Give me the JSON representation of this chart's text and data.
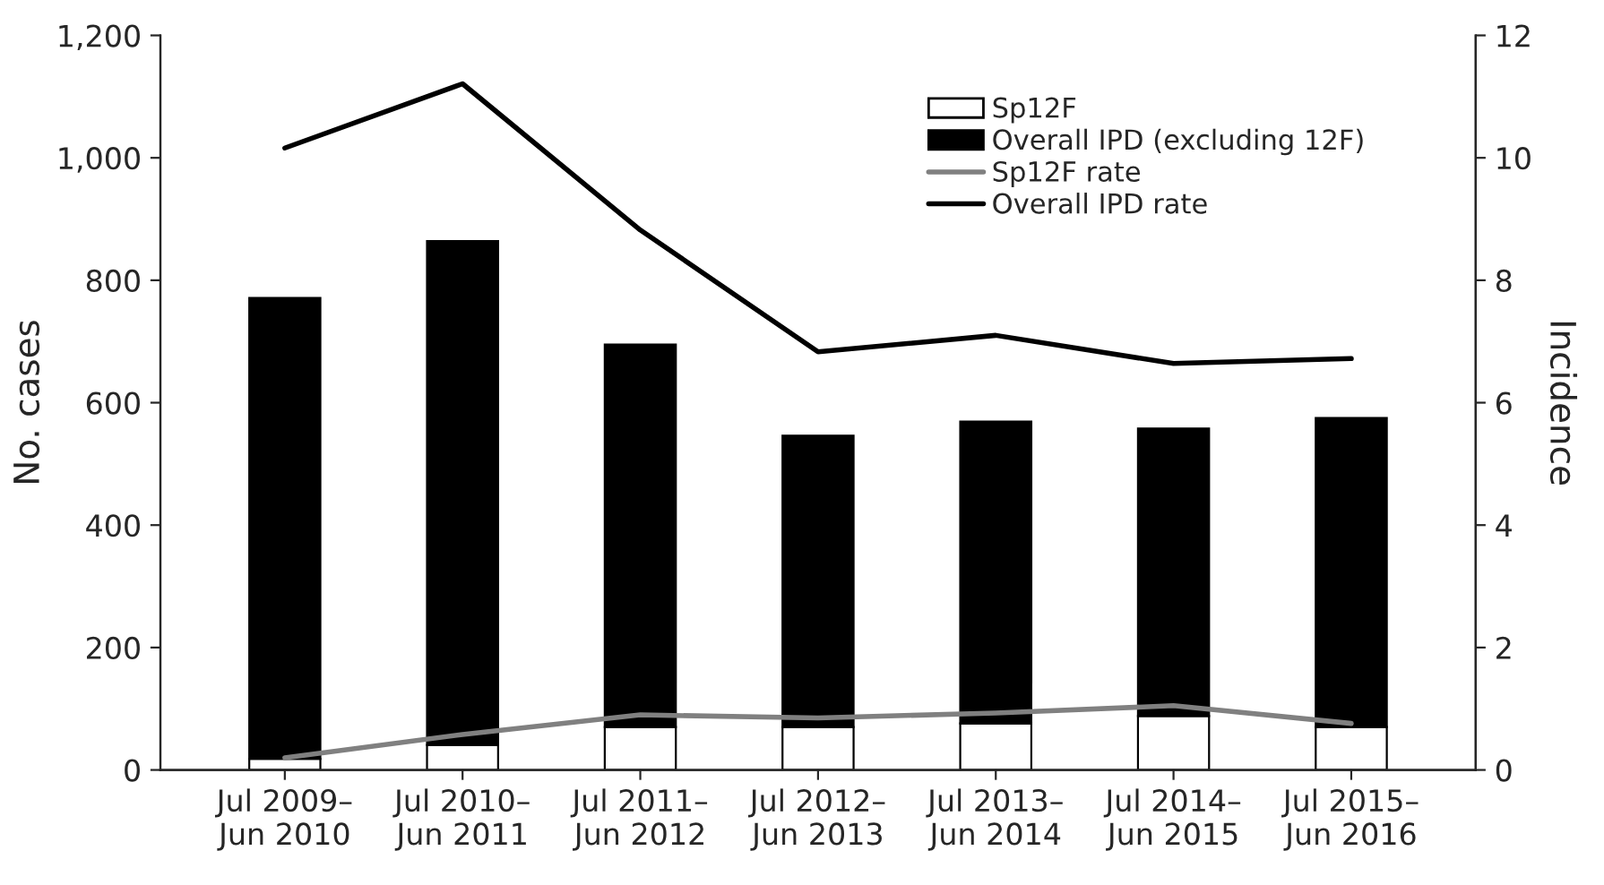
{
  "chart_data": {
    "type": "bar",
    "stacked": true,
    "ylabel": "No. cases",
    "y2label": "Incidence",
    "categories": [
      "Jul 2009–\nJun 2010",
      "Jul 2010–\nJun 2011",
      "Jul 2011–\nJun 2012",
      "Jul 2012–\nJun 2013",
      "Jul 2013–\nJun 2014",
      "Jul 2014–\nJun 2015",
      "Jul 2015–\nJun 2016"
    ],
    "series": [
      {
        "name": "Sp12F",
        "color": "#ffffff",
        "values": [
          18,
          41,
          70,
          70,
          76,
          88,
          70
        ]
      },
      {
        "name": "Overall IPD (excluding 12F)",
        "color": "#000000",
        "values": [
          753,
          823,
          625,
          476,
          493,
          470,
          505
        ]
      },
      {
        "name": "Sp12F rate",
        "type": "line",
        "axis": "y2",
        "color": "#808080",
        "values": [
          0.2,
          0.58,
          0.9,
          0.85,
          0.93,
          1.05,
          0.76
        ]
      },
      {
        "name": "Overall IPD rate",
        "type": "line",
        "axis": "y2",
        "color": "#000000",
        "values": [
          10.16,
          11.21,
          8.82,
          6.83,
          7.1,
          6.64,
          6.72
        ]
      }
    ],
    "ylim": [
      0,
      1200
    ],
    "yticks": [
      {
        "value": 0,
        "label": "0"
      },
      {
        "value": 200,
        "label": "200"
      },
      {
        "value": 400,
        "label": "400"
      },
      {
        "value": 600,
        "label": "600"
      },
      {
        "value": 800,
        "label": "800"
      },
      {
        "value": 1000,
        "label": "1,000"
      },
      {
        "value": 1200,
        "label": "1,200"
      }
    ],
    "y2lim": [
      0,
      12
    ],
    "y2ticks": [
      0,
      2,
      4,
      6,
      8,
      10,
      12
    ],
    "legend": "top",
    "grid": false
  }
}
